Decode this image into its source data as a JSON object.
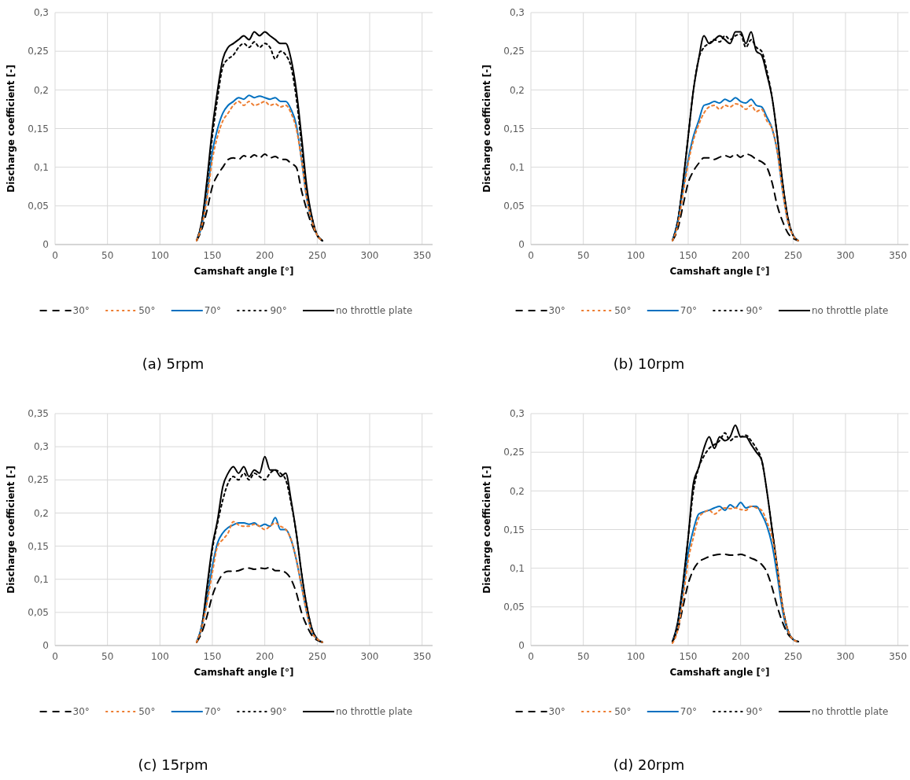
{
  "chart_data": [
    {
      "type": "line",
      "title": "(a) 5rpm",
      "xlabel": "Camshaft angle [°]",
      "ylabel": "Discharge coefficient [-]",
      "xlim": [
        0,
        360
      ],
      "xticks": [
        0,
        50,
        100,
        150,
        200,
        250,
        300,
        350
      ],
      "ylim": [
        0,
        0.3
      ],
      "yticks": [
        {
          "value": 0,
          "label": "0"
        },
        {
          "value": 0.05,
          "label": "0,05"
        },
        {
          "value": 0.1,
          "label": "0,1"
        },
        {
          "value": 0.15,
          "label": "0,15"
        },
        {
          "value": 0.2,
          "label": "0,2"
        },
        {
          "value": 0.25,
          "label": "0,25"
        },
        {
          "value": 0.3,
          "label": "0,3"
        }
      ],
      "grid": true,
      "legend": "bottom",
      "marker": "none",
      "x": [
        135,
        140,
        145,
        150,
        155,
        160,
        165,
        170,
        175,
        180,
        185,
        190,
        195,
        200,
        205,
        210,
        215,
        220,
        225,
        230,
        235,
        240,
        245,
        250,
        255
      ],
      "series": [
        {
          "name": "30°",
          "color": "#000000",
          "line_style": "dashed",
          "values": [
            0.005,
            0.02,
            0.045,
            0.075,
            0.09,
            0.1,
            0.11,
            0.112,
            0.11,
            0.115,
            0.112,
            0.116,
            0.112,
            0.117,
            0.112,
            0.114,
            0.11,
            0.11,
            0.105,
            0.1,
            0.07,
            0.045,
            0.025,
            0.012,
            0.005
          ]
        },
        {
          "name": "50°",
          "color": "#ed7d31",
          "line_style": "dotted",
          "values": [
            0.005,
            0.025,
            0.06,
            0.11,
            0.14,
            0.16,
            0.17,
            0.18,
            0.185,
            0.18,
            0.185,
            0.18,
            0.182,
            0.185,
            0.18,
            0.182,
            0.178,
            0.18,
            0.17,
            0.15,
            0.11,
            0.06,
            0.03,
            0.012,
            0.005
          ]
        },
        {
          "name": "70°",
          "color": "#0070c0",
          "line_style": "solid",
          "values": [
            0.005,
            0.025,
            0.065,
            0.12,
            0.15,
            0.17,
            0.18,
            0.185,
            0.19,
            0.188,
            0.193,
            0.19,
            0.192,
            0.19,
            0.188,
            0.19,
            0.185,
            0.185,
            0.175,
            0.155,
            0.11,
            0.06,
            0.03,
            0.012,
            0.005
          ]
        },
        {
          "name": "90°",
          "color": "#000000",
          "line_style": "dotted",
          "values": [
            0.005,
            0.03,
            0.08,
            0.14,
            0.19,
            0.23,
            0.24,
            0.245,
            0.255,
            0.26,
            0.255,
            0.262,
            0.255,
            0.26,
            0.255,
            0.24,
            0.25,
            0.245,
            0.23,
            0.19,
            0.13,
            0.07,
            0.035,
            0.012,
            0.005
          ]
        },
        {
          "name": "no throttle plate",
          "color": "#000000",
          "line_style": "solid",
          "values": [
            0.005,
            0.03,
            0.085,
            0.15,
            0.2,
            0.24,
            0.255,
            0.26,
            0.265,
            0.27,
            0.265,
            0.275,
            0.27,
            0.275,
            0.27,
            0.265,
            0.26,
            0.26,
            0.24,
            0.2,
            0.14,
            0.075,
            0.035,
            0.012,
            0.005
          ]
        }
      ]
    },
    {
      "type": "line",
      "title": "(b) 10rpm",
      "xlabel": "Camshaft angle [°]",
      "ylabel": "Discharge coefficient [-]",
      "xlim": [
        0,
        360
      ],
      "xticks": [
        0,
        50,
        100,
        150,
        200,
        250,
        300,
        350
      ],
      "ylim": [
        0,
        0.3
      ],
      "yticks": [
        {
          "value": 0,
          "label": "0"
        },
        {
          "value": 0.05,
          "label": "0,05"
        },
        {
          "value": 0.1,
          "label": "0,1"
        },
        {
          "value": 0.15,
          "label": "0,15"
        },
        {
          "value": 0.2,
          "label": "0,2"
        },
        {
          "value": 0.25,
          "label": "0,25"
        },
        {
          "value": 0.3,
          "label": "0,3"
        }
      ],
      "grid": true,
      "legend": "bottom",
      "marker": "none",
      "x": [
        135,
        140,
        145,
        150,
        155,
        160,
        165,
        170,
        175,
        180,
        185,
        190,
        195,
        200,
        205,
        210,
        215,
        220,
        225,
        230,
        235,
        240,
        245,
        250,
        255
      ],
      "series": [
        {
          "name": "30°",
          "color": "#000000",
          "line_style": "dashed",
          "values": [
            0.005,
            0.02,
            0.05,
            0.08,
            0.095,
            0.105,
            0.112,
            0.112,
            0.11,
            0.113,
            0.115,
            0.113,
            0.117,
            0.113,
            0.117,
            0.115,
            0.11,
            0.107,
            0.1,
            0.08,
            0.05,
            0.03,
            0.015,
            0.008,
            0.005
          ]
        },
        {
          "name": "50°",
          "color": "#ed7d31",
          "line_style": "dotted",
          "values": [
            0.005,
            0.025,
            0.065,
            0.105,
            0.135,
            0.155,
            0.17,
            0.178,
            0.18,
            0.175,
            0.18,
            0.178,
            0.182,
            0.18,
            0.175,
            0.18,
            0.172,
            0.175,
            0.16,
            0.15,
            0.12,
            0.07,
            0.03,
            0.012,
            0.005
          ]
        },
        {
          "name": "70°",
          "color": "#0070c0",
          "line_style": "solid",
          "values": [
            0.005,
            0.03,
            0.07,
            0.11,
            0.14,
            0.16,
            0.18,
            0.182,
            0.185,
            0.183,
            0.188,
            0.185,
            0.19,
            0.185,
            0.183,
            0.188,
            0.18,
            0.178,
            0.165,
            0.15,
            0.12,
            0.07,
            0.03,
            0.012,
            0.005
          ]
        },
        {
          "name": "90°",
          "color": "#000000",
          "line_style": "dotted",
          "values": [
            0.005,
            0.03,
            0.08,
            0.14,
            0.2,
            0.24,
            0.255,
            0.26,
            0.265,
            0.262,
            0.27,
            0.265,
            0.27,
            0.272,
            0.255,
            0.265,
            0.255,
            0.25,
            0.225,
            0.19,
            0.14,
            0.08,
            0.035,
            0.012,
            0.005
          ]
        },
        {
          "name": "no throttle plate",
          "color": "#000000",
          "line_style": "solid",
          "values": [
            0.005,
            0.03,
            0.08,
            0.14,
            0.2,
            0.24,
            0.27,
            0.26,
            0.265,
            0.27,
            0.265,
            0.26,
            0.275,
            0.275,
            0.26,
            0.275,
            0.25,
            0.245,
            0.22,
            0.19,
            0.14,
            0.08,
            0.035,
            0.012,
            0.005
          ]
        }
      ]
    },
    {
      "type": "line",
      "title": "(c) 15rpm",
      "xlabel": "Camshaft angle [°]",
      "ylabel": "Discharge coefficient [-]",
      "xlim": [
        0,
        360
      ],
      "xticks": [
        0,
        50,
        100,
        150,
        200,
        250,
        300,
        350
      ],
      "ylim": [
        0,
        0.35
      ],
      "yticks": [
        {
          "value": 0,
          "label": "0"
        },
        {
          "value": 0.05,
          "label": "0,05"
        },
        {
          "value": 0.1,
          "label": "0,1"
        },
        {
          "value": 0.15,
          "label": "0,15"
        },
        {
          "value": 0.2,
          "label": "0,2"
        },
        {
          "value": 0.25,
          "label": "0,25"
        },
        {
          "value": 0.3,
          "label": "0,3"
        },
        {
          "value": 0.35,
          "label": "0,35"
        }
      ],
      "grid": true,
      "legend": "bottom",
      "marker": "none",
      "x": [
        135,
        140,
        145,
        150,
        155,
        160,
        165,
        170,
        175,
        180,
        185,
        190,
        195,
        200,
        205,
        210,
        215,
        220,
        225,
        230,
        235,
        240,
        245,
        250,
        255
      ],
      "series": [
        {
          "name": "30°",
          "color": "#000000",
          "line_style": "dashed",
          "values": [
            0.005,
            0.02,
            0.045,
            0.075,
            0.095,
            0.108,
            0.112,
            0.112,
            0.113,
            0.116,
            0.117,
            0.115,
            0.117,
            0.116,
            0.118,
            0.113,
            0.113,
            0.11,
            0.1,
            0.08,
            0.05,
            0.03,
            0.015,
            0.008,
            0.005
          ]
        },
        {
          "name": "50°",
          "color": "#ed7d31",
          "line_style": "dotted",
          "values": [
            0.005,
            0.028,
            0.065,
            0.11,
            0.15,
            0.16,
            0.17,
            0.187,
            0.182,
            0.18,
            0.18,
            0.183,
            0.18,
            0.175,
            0.18,
            0.185,
            0.18,
            0.175,
            0.16,
            0.13,
            0.09,
            0.05,
            0.02,
            0.01,
            0.005
          ]
        },
        {
          "name": "70°",
          "color": "#0070c0",
          "line_style": "solid",
          "values": [
            0.005,
            0.03,
            0.07,
            0.12,
            0.155,
            0.17,
            0.178,
            0.182,
            0.185,
            0.185,
            0.183,
            0.185,
            0.18,
            0.183,
            0.18,
            0.193,
            0.175,
            0.175,
            0.16,
            0.13,
            0.09,
            0.05,
            0.02,
            0.01,
            0.005
          ]
        },
        {
          "name": "90°",
          "color": "#000000",
          "line_style": "dotted",
          "values": [
            0.005,
            0.03,
            0.085,
            0.145,
            0.185,
            0.22,
            0.245,
            0.255,
            0.25,
            0.26,
            0.25,
            0.26,
            0.255,
            0.25,
            0.26,
            0.265,
            0.26,
            0.25,
            0.215,
            0.17,
            0.11,
            0.06,
            0.025,
            0.01,
            0.005
          ]
        },
        {
          "name": "no throttle plate",
          "color": "#000000",
          "line_style": "solid",
          "values": [
            0.005,
            0.03,
            0.09,
            0.15,
            0.19,
            0.24,
            0.26,
            0.27,
            0.26,
            0.27,
            0.255,
            0.265,
            0.26,
            0.285,
            0.265,
            0.265,
            0.255,
            0.26,
            0.22,
            0.17,
            0.11,
            0.06,
            0.025,
            0.01,
            0.005
          ]
        }
      ]
    },
    {
      "type": "line",
      "title": "(d) 20rpm",
      "xlabel": "Camshaft angle [°]",
      "ylabel": "Discharge coefficient [-]",
      "xlim": [
        0,
        360
      ],
      "xticks": [
        0,
        50,
        100,
        150,
        200,
        250,
        300,
        350
      ],
      "ylim": [
        0,
        0.3
      ],
      "yticks": [
        {
          "value": 0,
          "label": "0"
        },
        {
          "value": 0.05,
          "label": "0,05"
        },
        {
          "value": 0.1,
          "label": "0,1"
        },
        {
          "value": 0.15,
          "label": "0,15"
        },
        {
          "value": 0.2,
          "label": "0,2"
        },
        {
          "value": 0.25,
          "label": "0,25"
        },
        {
          "value": 0.3,
          "label": "0,3"
        }
      ],
      "grid": true,
      "legend": "bottom",
      "marker": "none",
      "x": [
        135,
        140,
        145,
        150,
        155,
        160,
        165,
        170,
        175,
        180,
        185,
        190,
        195,
        200,
        205,
        210,
        215,
        220,
        225,
        230,
        235,
        240,
        245,
        250,
        255
      ],
      "series": [
        {
          "name": "30°",
          "color": "#000000",
          "line_style": "dashed",
          "values": [
            0.005,
            0.02,
            0.05,
            0.08,
            0.098,
            0.108,
            0.112,
            0.115,
            0.117,
            0.118,
            0.118,
            0.117,
            0.117,
            0.118,
            0.116,
            0.113,
            0.11,
            0.105,
            0.095,
            0.075,
            0.05,
            0.03,
            0.015,
            0.008,
            0.005
          ]
        },
        {
          "name": "50°",
          "color": "#ed7d31",
          "line_style": "dotted",
          "values": [
            0.003,
            0.02,
            0.06,
            0.11,
            0.14,
            0.165,
            0.172,
            0.175,
            0.17,
            0.175,
            0.178,
            0.177,
            0.178,
            0.176,
            0.175,
            0.18,
            0.178,
            0.175,
            0.16,
            0.14,
            0.1,
            0.05,
            0.02,
            0.008,
            0.005
          ]
        },
        {
          "name": "70°",
          "color": "#0070c0",
          "line_style": "solid",
          "values": [
            0.005,
            0.025,
            0.07,
            0.12,
            0.15,
            0.17,
            0.173,
            0.175,
            0.178,
            0.18,
            0.175,
            0.182,
            0.178,
            0.185,
            0.178,
            0.18,
            0.18,
            0.17,
            0.155,
            0.13,
            0.09,
            0.045,
            0.018,
            0.008,
            0.005
          ]
        },
        {
          "name": "90°",
          "color": "#000000",
          "line_style": "dotted",
          "values": [
            0.005,
            0.028,
            0.078,
            0.14,
            0.2,
            0.23,
            0.245,
            0.255,
            0.26,
            0.265,
            0.275,
            0.265,
            0.27,
            0.27,
            0.272,
            0.265,
            0.255,
            0.24,
            0.2,
            0.15,
            0.1,
            0.05,
            0.02,
            0.008,
            0.005
          ]
        },
        {
          "name": "no throttle plate",
          "color": "#000000",
          "line_style": "solid",
          "values": [
            0.005,
            0.03,
            0.08,
            0.14,
            0.21,
            0.23,
            0.255,
            0.27,
            0.255,
            0.27,
            0.265,
            0.27,
            0.285,
            0.27,
            0.27,
            0.26,
            0.25,
            0.24,
            0.2,
            0.15,
            0.1,
            0.05,
            0.02,
            0.008,
            0.005
          ]
        }
      ]
    }
  ]
}
